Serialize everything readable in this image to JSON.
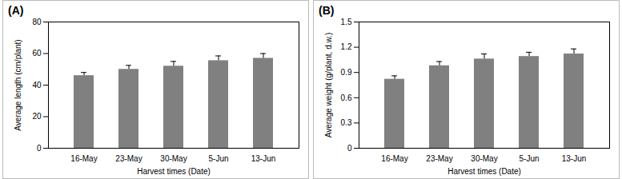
{
  "chart_data": [
    {
      "type": "bar",
      "title": "(A)",
      "x_label": "Harvest times (Date)",
      "y_label": "Average length (cm/plant)",
      "categories": [
        "16-May",
        "23-May",
        "30-May",
        "5-Jun",
        "13-Jun"
      ],
      "values": [
        46,
        50,
        52,
        55.5,
        57
      ],
      "errors": [
        2,
        2.5,
        3,
        3,
        3
      ],
      "color": "#808080",
      "ylim": [
        0,
        80
      ],
      "yticks": [
        0,
        20,
        40,
        60,
        80
      ],
      "grid": false
    },
    {
      "type": "bar",
      "title": "(B)",
      "x_label": "Harvest times (Date)",
      "y_label": "Average weight (g/plant, d.w.)",
      "categories": [
        "16-May",
        "23-May",
        "30-May",
        "5-Jun",
        "13-Jun"
      ],
      "values": [
        0.82,
        0.98,
        1.06,
        1.09,
        1.12
      ],
      "errors": [
        0.04,
        0.05,
        0.06,
        0.05,
        0.06
      ],
      "color": "#808080",
      "ylim": [
        0,
        1.5
      ],
      "yticks": [
        0,
        0.3,
        0.6,
        0.9,
        1.2,
        1.5
      ],
      "grid": false
    }
  ]
}
